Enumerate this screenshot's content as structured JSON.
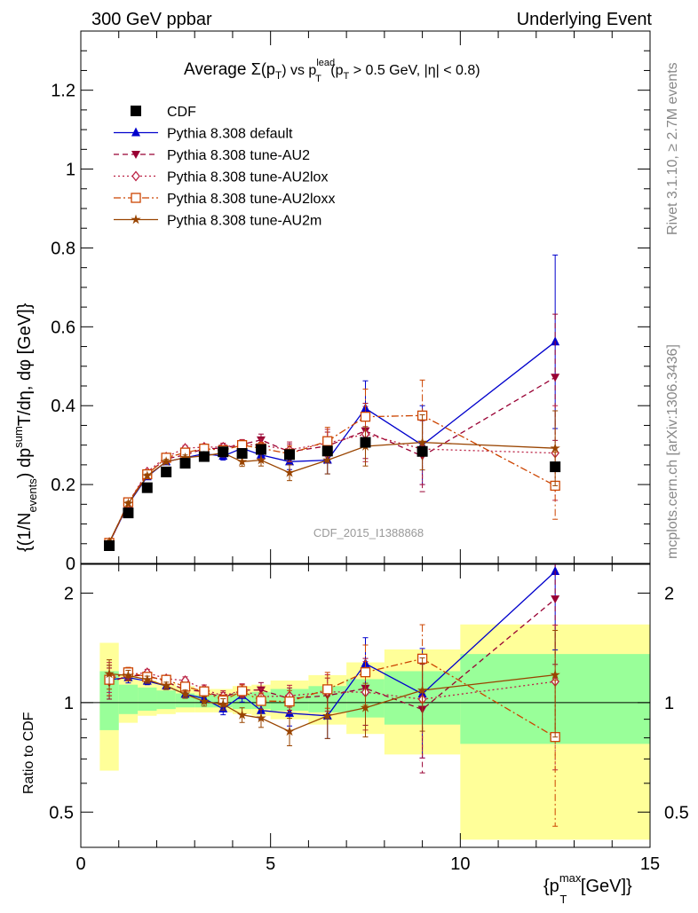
{
  "header": {
    "left": "300 GeV ppbar",
    "right": "Underlying Event"
  },
  "plot_title": {
    "prefix": "Average ",
    "sigma": "Σ(p",
    "sigma_sub": "T",
    "mid": ") vs p",
    "lead_sup": "lead",
    "lead_sub": "T",
    "cuts": " (p",
    "cuts_sub": "T",
    "cuts_rest": " > 0.5 GeV, |η| < 0.8)"
  },
  "side_labels": {
    "rivet": "Rivet 3.1.10, ≥ 2.7M events",
    "source": "mcplots.cern.ch [arXiv:1306.3436]"
  },
  "watermark": "CDF_2015_I1388868",
  "y_axis_label": {
    "p1": "{(1/N",
    "p1_sub": "events",
    "p2": ") dp",
    "p2_sup": "sum",
    "p3": "T",
    "p4": "/dη, dφ [GeV]}"
  },
  "ratio_axis_label": "Ratio to CDF",
  "x_axis_label": {
    "p1": "{p",
    "sup": "max",
    "sub": "T",
    "p2": " [GeV]}"
  },
  "main_tick_labels": [
    "0",
    "0.2",
    "0.4",
    "0.6",
    "0.8",
    "1",
    "1.2"
  ],
  "ratio_tick_labels": [
    "0.5",
    "1",
    "2"
  ],
  "x_tick_labels": [
    "0",
    "5",
    "10",
    "15"
  ],
  "legend": [
    {
      "label": "CDF",
      "color": "#000000",
      "marker": "square-filled",
      "dash": "none"
    },
    {
      "label": "Pythia 8.308 default",
      "color": "#0000cc",
      "marker": "triangle-up",
      "dash": "solid"
    },
    {
      "label": "Pythia 8.308 tune-AU2",
      "color": "#990033",
      "marker": "triangle-down",
      "dash": "dashed"
    },
    {
      "label": "Pythia 8.308 tune-AU2lox",
      "color": "#bb2244",
      "marker": "diamond-open",
      "dash": "dotted"
    },
    {
      "label": "Pythia 8.308 tune-AU2loxx",
      "color": "#cc4400",
      "marker": "square-open",
      "dash": "dashdot"
    },
    {
      "label": "Pythia 8.308 tune-AU2m",
      "color": "#994400",
      "marker": "star",
      "dash": "solid"
    }
  ],
  "chart_data": {
    "type": "line",
    "x_label": "{p_T^max [GeV]}",
    "y_label": "{(1/N_events) dp^sum_T/dη, dφ [GeV]}",
    "xlim": [
      0,
      15
    ],
    "ylim": [
      0,
      1.35
    ],
    "ratio_ylim": [
      0.4,
      2.4
    ],
    "ratio_scale": "log",
    "x": [
      0.75,
      1.25,
      1.75,
      2.25,
      2.75,
      3.25,
      3.75,
      4.25,
      4.75,
      5.5,
      6.5,
      7.5,
      9.0,
      12.5
    ],
    "x_bin_edges": [
      0.5,
      1.0,
      1.5,
      2.0,
      2.5,
      3.0,
      3.5,
      4.0,
      4.5,
      5.0,
      6.0,
      7.0,
      8.0,
      10.0,
      15.0
    ],
    "data": {
      "name": "CDF",
      "values": [
        0.045,
        0.128,
        0.192,
        0.232,
        0.254,
        0.271,
        0.283,
        0.279,
        0.289,
        0.276,
        0.285,
        0.307,
        0.284,
        0.245
      ],
      "ratio_band_inner": [
        [
          0.84,
          1.22
        ],
        [
          0.93,
          1.12
        ],
        [
          0.95,
          1.1
        ],
        [
          0.96,
          1.08
        ],
        [
          0.97,
          1.06
        ],
        [
          0.97,
          1.05
        ],
        [
          0.97,
          1.05
        ],
        [
          0.96,
          1.06
        ],
        [
          0.96,
          1.07
        ],
        [
          0.95,
          1.09
        ],
        [
          0.94,
          1.11
        ],
        [
          0.91,
          1.16
        ],
        [
          0.87,
          1.22
        ],
        [
          0.77,
          1.36
        ]
      ],
      "ratio_band_outer": [
        [
          0.65,
          1.46
        ],
        [
          0.88,
          1.19
        ],
        [
          0.92,
          1.15
        ],
        [
          0.93,
          1.13
        ],
        [
          0.94,
          1.11
        ],
        [
          0.94,
          1.09
        ],
        [
          0.94,
          1.09
        ],
        [
          0.93,
          1.11
        ],
        [
          0.92,
          1.12
        ],
        [
          0.9,
          1.15
        ],
        [
          0.87,
          1.19
        ],
        [
          0.82,
          1.29
        ],
        [
          0.72,
          1.4
        ],
        [
          0.42,
          1.64
        ]
      ]
    },
    "series": [
      {
        "name": "Pythia 8.308 default",
        "values": [
          0.052,
          0.15,
          0.22,
          0.258,
          0.268,
          0.278,
          0.272,
          0.292,
          0.275,
          0.258,
          0.262,
          0.393,
          0.3,
          0.562
        ],
        "errors": [
          0.005,
          0.005,
          0.005,
          0.006,
          0.007,
          0.008,
          0.01,
          0.012,
          0.015,
          0.02,
          0.035,
          0.07,
          0.1,
          0.22
        ]
      },
      {
        "name": "Pythia 8.308 tune-AU2",
        "values": [
          0.051,
          0.152,
          0.228,
          0.265,
          0.275,
          0.291,
          0.292,
          0.302,
          0.313,
          0.283,
          0.298,
          0.336,
          0.272,
          0.472
        ],
        "errors": [
          0.005,
          0.005,
          0.005,
          0.006,
          0.007,
          0.008,
          0.01,
          0.012,
          0.015,
          0.02,
          0.035,
          0.07,
          0.09,
          0.16
        ]
      },
      {
        "name": "Pythia 8.308 tune-AU2lox",
        "values": [
          0.053,
          0.153,
          0.232,
          0.27,
          0.292,
          0.295,
          0.295,
          0.302,
          0.3,
          0.288,
          0.305,
          0.328,
          0.29,
          0.28
        ],
        "errors": [
          0.005,
          0.005,
          0.005,
          0.006,
          0.007,
          0.008,
          0.01,
          0.012,
          0.015,
          0.02,
          0.035,
          0.07,
          0.09,
          0.12
        ]
      },
      {
        "name": "Pythia 8.308 tune-AU2loxx",
        "values": [
          0.052,
          0.155,
          0.226,
          0.268,
          0.281,
          0.291,
          0.287,
          0.3,
          0.292,
          0.278,
          0.31,
          0.372,
          0.375,
          0.197
        ],
        "errors": [
          0.005,
          0.005,
          0.005,
          0.006,
          0.007,
          0.008,
          0.01,
          0.012,
          0.015,
          0.02,
          0.035,
          0.07,
          0.09,
          0.085
        ]
      },
      {
        "name": "Pythia 8.308 tune-AU2m",
        "values": [
          0.054,
          0.152,
          0.222,
          0.258,
          0.268,
          0.273,
          0.28,
          0.258,
          0.262,
          0.23,
          0.262,
          0.297,
          0.307,
          0.292
        ],
        "errors": [
          0.005,
          0.005,
          0.005,
          0.006,
          0.007,
          0.008,
          0.01,
          0.012,
          0.015,
          0.02,
          0.035,
          0.05,
          0.07,
          0.095
        ]
      }
    ]
  }
}
